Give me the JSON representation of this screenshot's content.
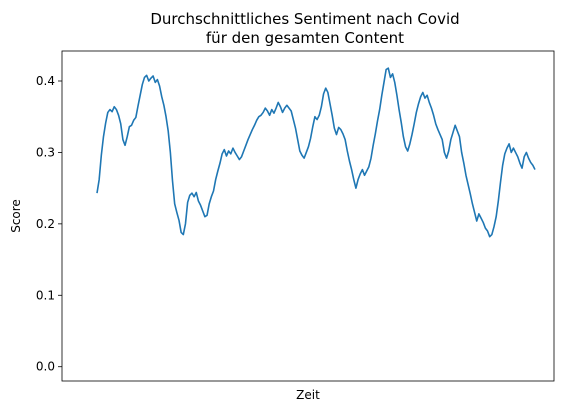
{
  "chart_data": {
    "type": "line",
    "title": [
      "Durchschnittliches Sentiment nach Covid",
      "für den gesamten Content"
    ],
    "xlabel": "Zeit",
    "ylabel": "Score",
    "ylim": [
      -0.02,
      0.442
    ],
    "yticks": [
      "0.0",
      "0.1",
      "0.2",
      "0.3",
      "0.4"
    ],
    "ytick_values": [
      0.0,
      0.1,
      0.2,
      0.3,
      0.4
    ],
    "xticks": [],
    "grid": false,
    "legend": "none",
    "series": [
      {
        "color": "#1f77b4",
        "values": [
          0.243,
          0.262,
          0.296,
          0.322,
          0.341,
          0.356,
          0.36,
          0.357,
          0.364,
          0.36,
          0.352,
          0.34,
          0.318,
          0.31,
          0.322,
          0.336,
          0.338,
          0.345,
          0.349,
          0.365,
          0.38,
          0.395,
          0.405,
          0.408,
          0.4,
          0.404,
          0.407,
          0.398,
          0.402,
          0.393,
          0.378,
          0.366,
          0.35,
          0.33,
          0.3,
          0.26,
          0.228,
          0.216,
          0.205,
          0.188,
          0.185,
          0.2,
          0.23,
          0.24,
          0.243,
          0.238,
          0.244,
          0.232,
          0.226,
          0.218,
          0.21,
          0.212,
          0.228,
          0.238,
          0.246,
          0.262,
          0.274,
          0.285,
          0.298,
          0.304,
          0.295,
          0.302,
          0.298,
          0.306,
          0.3,
          0.295,
          0.29,
          0.294,
          0.302,
          0.31,
          0.318,
          0.325,
          0.332,
          0.338,
          0.345,
          0.35,
          0.352,
          0.356,
          0.362,
          0.358,
          0.352,
          0.36,
          0.355,
          0.362,
          0.37,
          0.364,
          0.356,
          0.362,
          0.366,
          0.362,
          0.358,
          0.346,
          0.334,
          0.318,
          0.302,
          0.296,
          0.292,
          0.3,
          0.308,
          0.32,
          0.336,
          0.35,
          0.346,
          0.352,
          0.364,
          0.382,
          0.39,
          0.384,
          0.368,
          0.352,
          0.334,
          0.325,
          0.335,
          0.332,
          0.326,
          0.318,
          0.302,
          0.288,
          0.276,
          0.262,
          0.25,
          0.262,
          0.27,
          0.276,
          0.268,
          0.274,
          0.28,
          0.292,
          0.31,
          0.326,
          0.344,
          0.36,
          0.38,
          0.398,
          0.416,
          0.418,
          0.405,
          0.41,
          0.398,
          0.38,
          0.36,
          0.342,
          0.322,
          0.308,
          0.302,
          0.312,
          0.325,
          0.34,
          0.356,
          0.368,
          0.378,
          0.384,
          0.376,
          0.38,
          0.37,
          0.362,
          0.352,
          0.34,
          0.332,
          0.325,
          0.318,
          0.3,
          0.292,
          0.302,
          0.318,
          0.328,
          0.338,
          0.33,
          0.322,
          0.3,
          0.285,
          0.268,
          0.255,
          0.242,
          0.228,
          0.216,
          0.204,
          0.214,
          0.208,
          0.202,
          0.194,
          0.19,
          0.182,
          0.185,
          0.196,
          0.21,
          0.232,
          0.258,
          0.282,
          0.298,
          0.306,
          0.312,
          0.3,
          0.306,
          0.3,
          0.294,
          0.285,
          0.278,
          0.294,
          0.3,
          0.292,
          0.286,
          0.282,
          0.276
        ]
      }
    ]
  }
}
